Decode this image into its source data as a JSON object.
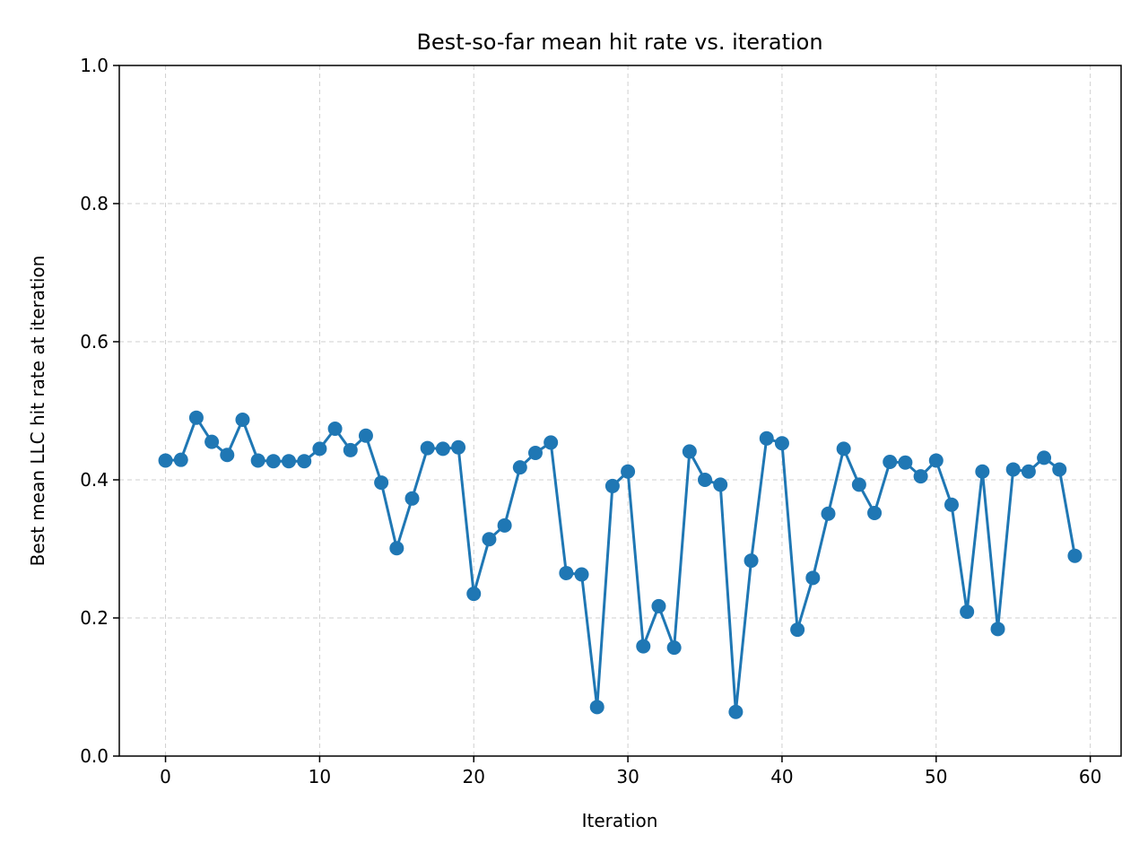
{
  "chart_data": {
    "type": "line",
    "title": "Best-so-far mean hit rate vs. iteration",
    "xlabel": "Iteration",
    "ylabel": "Best mean LLC hit rate at iteration",
    "xlim": [
      -3,
      62
    ],
    "ylim": [
      0.0,
      1.0
    ],
    "xticks": [
      0,
      10,
      20,
      30,
      40,
      50,
      60
    ],
    "yticks": [
      0.0,
      0.2,
      0.4,
      0.6,
      0.8,
      1.0
    ],
    "xtick_labels": [
      "0",
      "10",
      "20",
      "30",
      "40",
      "50",
      "60"
    ],
    "ytick_labels": [
      "0.0",
      "0.2",
      "0.4",
      "0.6",
      "0.8",
      "1.0"
    ],
    "grid": true,
    "marker": "circle",
    "color": "#1f77b4",
    "x": [
      0,
      1,
      2,
      3,
      4,
      5,
      6,
      7,
      8,
      9,
      10,
      11,
      12,
      13,
      14,
      15,
      16,
      17,
      18,
      19,
      20,
      21,
      22,
      23,
      24,
      25,
      26,
      27,
      28,
      29,
      30,
      31,
      32,
      33,
      34,
      35,
      36,
      37,
      38,
      39,
      40,
      41,
      42,
      43,
      44,
      45,
      46,
      47,
      48,
      49,
      50,
      51,
      52,
      53,
      54,
      55,
      56,
      57,
      58,
      59
    ],
    "y": [
      0.428,
      0.429,
      0.49,
      0.455,
      0.436,
      0.487,
      0.428,
      0.427,
      0.427,
      0.427,
      0.445,
      0.474,
      0.443,
      0.464,
      0.396,
      0.301,
      0.373,
      0.446,
      0.445,
      0.447,
      0.235,
      0.314,
      0.334,
      0.418,
      0.439,
      0.454,
      0.265,
      0.263,
      0.071,
      0.391,
      0.412,
      0.159,
      0.217,
      0.157,
      0.441,
      0.4,
      0.393,
      0.064,
      0.283,
      0.46,
      0.453,
      0.183,
      0.258,
      0.351,
      0.445,
      0.393,
      0.352,
      0.426,
      0.425,
      0.405,
      0.428,
      0.364,
      0.209,
      0.412,
      0.184,
      0.415,
      0.412,
      0.432,
      0.415,
      0.29
    ]
  }
}
